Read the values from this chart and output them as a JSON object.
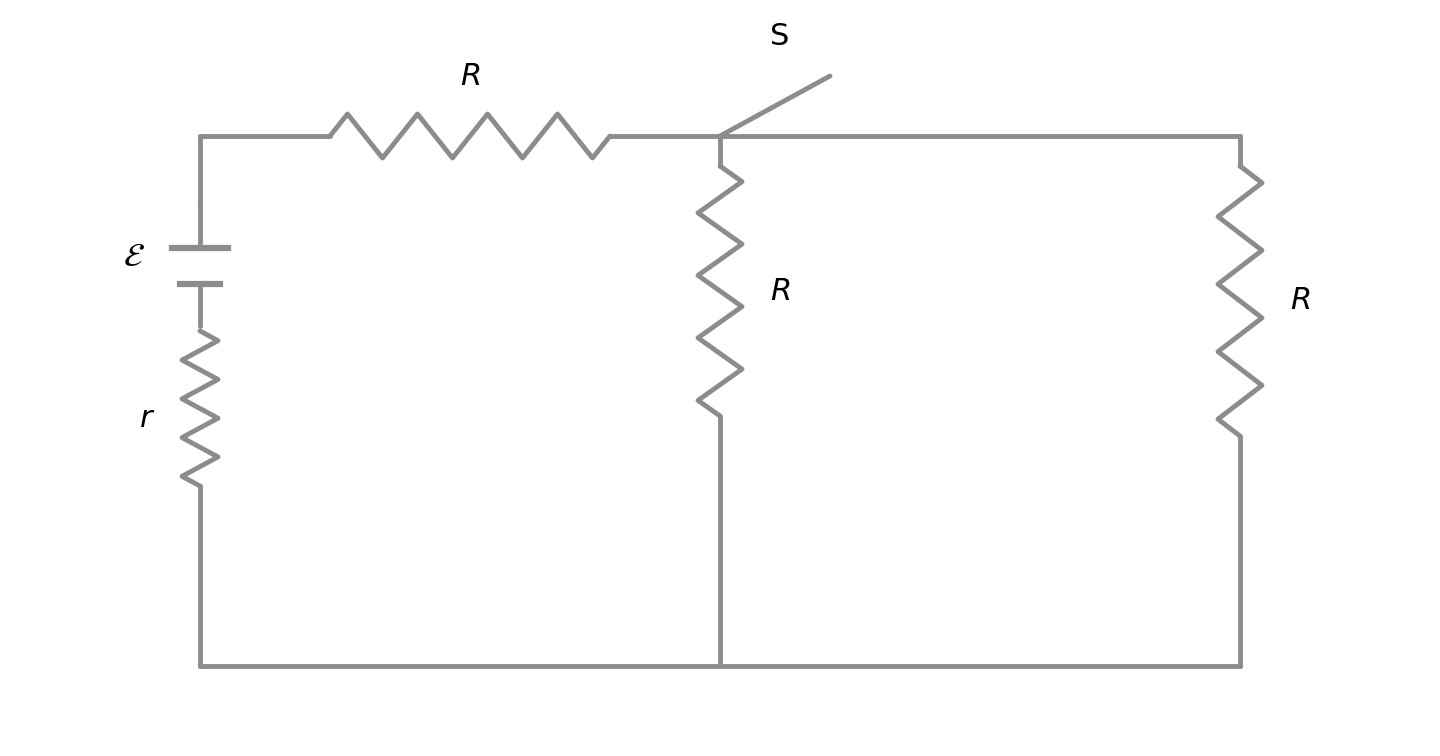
{
  "color": "#8c8c8c",
  "lw": 3.5,
  "bg": "#ffffff",
  "fig_w": 14.4,
  "fig_h": 7.56,
  "resistor_amplitude": 0.09,
  "resistor_segments": 8
}
